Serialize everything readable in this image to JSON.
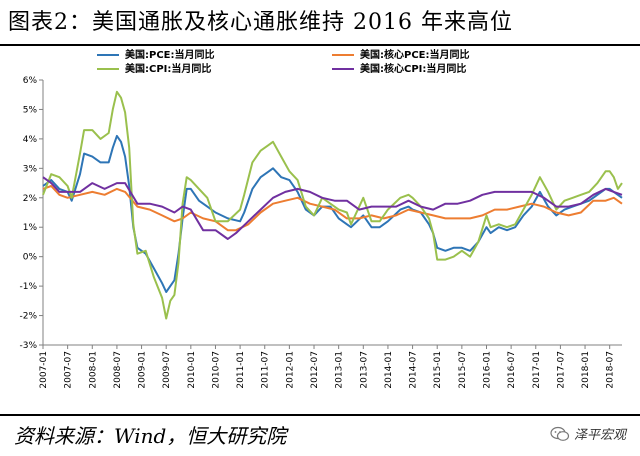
{
  "title": "图表2：美国通胀及核心通胀维持 2016 年来高位",
  "source": "资料来源：Wind，恒大研究院",
  "brand": {
    "name": "泽平宏观",
    "icon": "wechat-icon"
  },
  "chart_data": {
    "type": "line",
    "title": "",
    "xlabel": "",
    "ylabel": "",
    "ylim": [
      -3,
      6
    ],
    "yticks": [
      "-3%",
      "-2%",
      "-1%",
      "0%",
      "1%",
      "2%",
      "3%",
      "4%",
      "5%",
      "6%"
    ],
    "xticks": [
      "2007-01",
      "2007-07",
      "2008-01",
      "2008-07",
      "2009-01",
      "2009-07",
      "2010-01",
      "2010-07",
      "2011-01",
      "2011-07",
      "2012-01",
      "2012-07",
      "2013-01",
      "2013-07",
      "2014-01",
      "2014-07",
      "2015-01",
      "2015-07",
      "2016-01",
      "2016-07",
      "2017-01",
      "2017-07",
      "2018-01",
      "2018-07"
    ],
    "x_start": "2007-01",
    "x_end": "2018-10",
    "grid": false,
    "legend_position": "top",
    "series": [
      {
        "name": "美国:PCE:当月同比",
        "color": "#2e75b6",
        "points": [
          [
            "2007-01",
            2.4
          ],
          [
            "2007-03",
            2.6
          ],
          [
            "2007-05",
            2.3
          ],
          [
            "2007-07",
            2.2
          ],
          [
            "2007-08",
            1.9
          ],
          [
            "2007-10",
            2.8
          ],
          [
            "2007-11",
            3.5
          ],
          [
            "2008-01",
            3.4
          ],
          [
            "2008-03",
            3.2
          ],
          [
            "2008-05",
            3.2
          ],
          [
            "2008-06",
            3.7
          ],
          [
            "2008-07",
            4.1
          ],
          [
            "2008-08",
            3.9
          ],
          [
            "2008-09",
            3.4
          ],
          [
            "2008-10",
            2.4
          ],
          [
            "2008-11",
            1.0
          ],
          [
            "2008-12",
            0.3
          ],
          [
            "2009-02",
            0.1
          ],
          [
            "2009-04",
            -0.4
          ],
          [
            "2009-06",
            -0.9
          ],
          [
            "2009-07",
            -1.2
          ],
          [
            "2009-08",
            -1.0
          ],
          [
            "2009-09",
            -0.8
          ],
          [
            "2009-10",
            0.1
          ],
          [
            "2009-11",
            1.3
          ],
          [
            "2009-12",
            2.3
          ],
          [
            "2010-01",
            2.3
          ],
          [
            "2010-03",
            1.9
          ],
          [
            "2010-05",
            1.7
          ],
          [
            "2010-07",
            1.5
          ],
          [
            "2010-10",
            1.3
          ],
          [
            "2011-01",
            1.2
          ],
          [
            "2011-02",
            1.5
          ],
          [
            "2011-04",
            2.3
          ],
          [
            "2011-06",
            2.7
          ],
          [
            "2011-08",
            2.9
          ],
          [
            "2011-09",
            3.0
          ],
          [
            "2011-11",
            2.7
          ],
          [
            "2012-01",
            2.6
          ],
          [
            "2012-03",
            2.2
          ],
          [
            "2012-05",
            1.6
          ],
          [
            "2012-07",
            1.4
          ],
          [
            "2012-09",
            1.7
          ],
          [
            "2012-11",
            1.7
          ],
          [
            "2013-01",
            1.3
          ],
          [
            "2013-03",
            1.1
          ],
          [
            "2013-04",
            1.0
          ],
          [
            "2013-07",
            1.4
          ],
          [
            "2013-09",
            1.0
          ],
          [
            "2013-11",
            1.0
          ],
          [
            "2014-01",
            1.2
          ],
          [
            "2014-04",
            1.6
          ],
          [
            "2014-06",
            1.7
          ],
          [
            "2014-07",
            1.6
          ],
          [
            "2014-09",
            1.5
          ],
          [
            "2014-11",
            1.1
          ],
          [
            "2014-12",
            0.8
          ],
          [
            "2015-01",
            0.3
          ],
          [
            "2015-03",
            0.2
          ],
          [
            "2015-05",
            0.3
          ],
          [
            "2015-07",
            0.3
          ],
          [
            "2015-09",
            0.2
          ],
          [
            "2015-11",
            0.5
          ],
          [
            "2016-01",
            1.0
          ],
          [
            "2016-02",
            0.8
          ],
          [
            "2016-04",
            1.0
          ],
          [
            "2016-06",
            0.9
          ],
          [
            "2016-08",
            1.0
          ],
          [
            "2016-10",
            1.4
          ],
          [
            "2016-12",
            1.7
          ],
          [
            "2017-02",
            2.2
          ],
          [
            "2017-04",
            1.7
          ],
          [
            "2017-06",
            1.4
          ],
          [
            "2017-08",
            1.6
          ],
          [
            "2017-10",
            1.7
          ],
          [
            "2017-12",
            1.8
          ],
          [
            "2018-02",
            1.9
          ],
          [
            "2018-04",
            2.1
          ],
          [
            "2018-06",
            2.3
          ],
          [
            "2018-07",
            2.3
          ],
          [
            "2018-08",
            2.2
          ],
          [
            "2018-10",
            2.0
          ]
        ]
      },
      {
        "name": "美国:核心PCE:当月同比",
        "color": "#ed7d31",
        "points": [
          [
            "2007-01",
            2.3
          ],
          [
            "2007-03",
            2.4
          ],
          [
            "2007-05",
            2.1
          ],
          [
            "2007-07",
            2.0
          ],
          [
            "2007-10",
            2.1
          ],
          [
            "2008-01",
            2.2
          ],
          [
            "2008-04",
            2.1
          ],
          [
            "2008-07",
            2.3
          ],
          [
            "2008-09",
            2.2
          ],
          [
            "2008-12",
            1.7
          ],
          [
            "2009-03",
            1.6
          ],
          [
            "2009-06",
            1.4
          ],
          [
            "2009-09",
            1.2
          ],
          [
            "2009-11",
            1.3
          ],
          [
            "2010-01",
            1.5
          ],
          [
            "2010-04",
            1.3
          ],
          [
            "2010-07",
            1.2
          ],
          [
            "2010-10",
            0.9
          ],
          [
            "2010-12",
            0.9
          ],
          [
            "2011-03",
            1.1
          ],
          [
            "2011-06",
            1.5
          ],
          [
            "2011-09",
            1.8
          ],
          [
            "2011-12",
            1.9
          ],
          [
            "2012-03",
            2.0
          ],
          [
            "2012-06",
            1.8
          ],
          [
            "2012-09",
            1.7
          ],
          [
            "2012-12",
            1.6
          ],
          [
            "2013-03",
            1.3
          ],
          [
            "2013-06",
            1.3
          ],
          [
            "2013-09",
            1.4
          ],
          [
            "2013-12",
            1.3
          ],
          [
            "2014-03",
            1.4
          ],
          [
            "2014-06",
            1.6
          ],
          [
            "2014-09",
            1.5
          ],
          [
            "2014-12",
            1.4
          ],
          [
            "2015-03",
            1.3
          ],
          [
            "2015-06",
            1.3
          ],
          [
            "2015-09",
            1.3
          ],
          [
            "2015-12",
            1.4
          ],
          [
            "2016-03",
            1.6
          ],
          [
            "2016-06",
            1.6
          ],
          [
            "2016-09",
            1.7
          ],
          [
            "2016-12",
            1.8
          ],
          [
            "2017-03",
            1.7
          ],
          [
            "2017-06",
            1.5
          ],
          [
            "2017-09",
            1.4
          ],
          [
            "2017-12",
            1.5
          ],
          [
            "2018-03",
            1.9
          ],
          [
            "2018-06",
            1.9
          ],
          [
            "2018-08",
            2.0
          ],
          [
            "2018-10",
            1.8
          ]
        ]
      },
      {
        "name": "美国:CPI:当月同比",
        "color": "#9ac04d",
        "points": [
          [
            "2007-01",
            2.1
          ],
          [
            "2007-03",
            2.8
          ],
          [
            "2007-05",
            2.7
          ],
          [
            "2007-07",
            2.4
          ],
          [
            "2007-08",
            2.0
          ],
          [
            "2007-10",
            3.5
          ],
          [
            "2007-11",
            4.3
          ],
          [
            "2008-01",
            4.3
          ],
          [
            "2008-03",
            4.0
          ],
          [
            "2008-05",
            4.2
          ],
          [
            "2008-06",
            5.0
          ],
          [
            "2008-07",
            5.6
          ],
          [
            "2008-08",
            5.4
          ],
          [
            "2008-09",
            4.9
          ],
          [
            "2008-10",
            3.7
          ],
          [
            "2008-11",
            1.1
          ],
          [
            "2008-12",
            0.1
          ],
          [
            "2009-02",
            0.2
          ],
          [
            "2009-04",
            -0.7
          ],
          [
            "2009-06",
            -1.4
          ],
          [
            "2009-07",
            -2.1
          ],
          [
            "2009-08",
            -1.5
          ],
          [
            "2009-09",
            -1.3
          ],
          [
            "2009-10",
            -0.2
          ],
          [
            "2009-11",
            1.8
          ],
          [
            "2009-12",
            2.7
          ],
          [
            "2010-01",
            2.6
          ],
          [
            "2010-03",
            2.3
          ],
          [
            "2010-05",
            2.0
          ],
          [
            "2010-07",
            1.2
          ],
          [
            "2010-10",
            1.2
          ],
          [
            "2011-01",
            1.6
          ],
          [
            "2011-02",
            2.1
          ],
          [
            "2011-04",
            3.2
          ],
          [
            "2011-06",
            3.6
          ],
          [
            "2011-08",
            3.8
          ],
          [
            "2011-09",
            3.9
          ],
          [
            "2011-11",
            3.4
          ],
          [
            "2012-01",
            2.9
          ],
          [
            "2012-03",
            2.6
          ],
          [
            "2012-05",
            1.7
          ],
          [
            "2012-07",
            1.4
          ],
          [
            "2012-09",
            2.0
          ],
          [
            "2012-11",
            1.8
          ],
          [
            "2013-01",
            1.6
          ],
          [
            "2013-03",
            1.5
          ],
          [
            "2013-04",
            1.1
          ],
          [
            "2013-07",
            2.0
          ],
          [
            "2013-09",
            1.2
          ],
          [
            "2013-11",
            1.2
          ],
          [
            "2014-01",
            1.6
          ],
          [
            "2014-04",
            2.0
          ],
          [
            "2014-06",
            2.1
          ],
          [
            "2014-07",
            2.0
          ],
          [
            "2014-09",
            1.7
          ],
          [
            "2014-11",
            1.3
          ],
          [
            "2014-12",
            0.8
          ],
          [
            "2015-01",
            -0.1
          ],
          [
            "2015-03",
            -0.1
          ],
          [
            "2015-05",
            0.0
          ],
          [
            "2015-07",
            0.2
          ],
          [
            "2015-09",
            0.0
          ],
          [
            "2015-11",
            0.5
          ],
          [
            "2016-01",
            1.4
          ],
          [
            "2016-02",
            1.0
          ],
          [
            "2016-04",
            1.1
          ],
          [
            "2016-06",
            1.0
          ],
          [
            "2016-08",
            1.1
          ],
          [
            "2016-10",
            1.6
          ],
          [
            "2016-12",
            2.1
          ],
          [
            "2017-02",
            2.7
          ],
          [
            "2017-04",
            2.2
          ],
          [
            "2017-06",
            1.6
          ],
          [
            "2017-08",
            1.9
          ],
          [
            "2017-10",
            2.0
          ],
          [
            "2017-12",
            2.1
          ],
          [
            "2018-02",
            2.2
          ],
          [
            "2018-04",
            2.5
          ],
          [
            "2018-06",
            2.9
          ],
          [
            "2018-07",
            2.9
          ],
          [
            "2018-08",
            2.7
          ],
          [
            "2018-09",
            2.3
          ],
          [
            "2018-10",
            2.5
          ]
        ]
      },
      {
        "name": "美国:核心CPI:当月同比",
        "color": "#7030a0",
        "points": [
          [
            "2007-01",
            2.7
          ],
          [
            "2007-03",
            2.5
          ],
          [
            "2007-05",
            2.2
          ],
          [
            "2007-07",
            2.2
          ],
          [
            "2007-10",
            2.2
          ],
          [
            "2008-01",
            2.5
          ],
          [
            "2008-04",
            2.3
          ],
          [
            "2008-07",
            2.5
          ],
          [
            "2008-09",
            2.5
          ],
          [
            "2008-12",
            1.8
          ],
          [
            "2009-03",
            1.8
          ],
          [
            "2009-06",
            1.7
          ],
          [
            "2009-09",
            1.5
          ],
          [
            "2009-11",
            1.7
          ],
          [
            "2010-01",
            1.6
          ],
          [
            "2010-04",
            0.9
          ],
          [
            "2010-07",
            0.9
          ],
          [
            "2010-10",
            0.6
          ],
          [
            "2010-12",
            0.8
          ],
          [
            "2011-03",
            1.2
          ],
          [
            "2011-06",
            1.6
          ],
          [
            "2011-09",
            2.0
          ],
          [
            "2011-12",
            2.2
          ],
          [
            "2012-03",
            2.3
          ],
          [
            "2012-06",
            2.2
          ],
          [
            "2012-09",
            2.0
          ],
          [
            "2012-12",
            1.9
          ],
          [
            "2013-03",
            1.9
          ],
          [
            "2013-06",
            1.6
          ],
          [
            "2013-09",
            1.7
          ],
          [
            "2013-12",
            1.7
          ],
          [
            "2014-03",
            1.7
          ],
          [
            "2014-06",
            1.9
          ],
          [
            "2014-09",
            1.7
          ],
          [
            "2014-12",
            1.6
          ],
          [
            "2015-03",
            1.8
          ],
          [
            "2015-06",
            1.8
          ],
          [
            "2015-09",
            1.9
          ],
          [
            "2015-12",
            2.1
          ],
          [
            "2016-03",
            2.2
          ],
          [
            "2016-06",
            2.2
          ],
          [
            "2016-09",
            2.2
          ],
          [
            "2016-12",
            2.2
          ],
          [
            "2017-03",
            2.0
          ],
          [
            "2017-06",
            1.7
          ],
          [
            "2017-09",
            1.7
          ],
          [
            "2017-12",
            1.8
          ],
          [
            "2018-03",
            2.1
          ],
          [
            "2018-06",
            2.3
          ],
          [
            "2018-08",
            2.2
          ],
          [
            "2018-10",
            2.1
          ]
        ]
      }
    ]
  }
}
